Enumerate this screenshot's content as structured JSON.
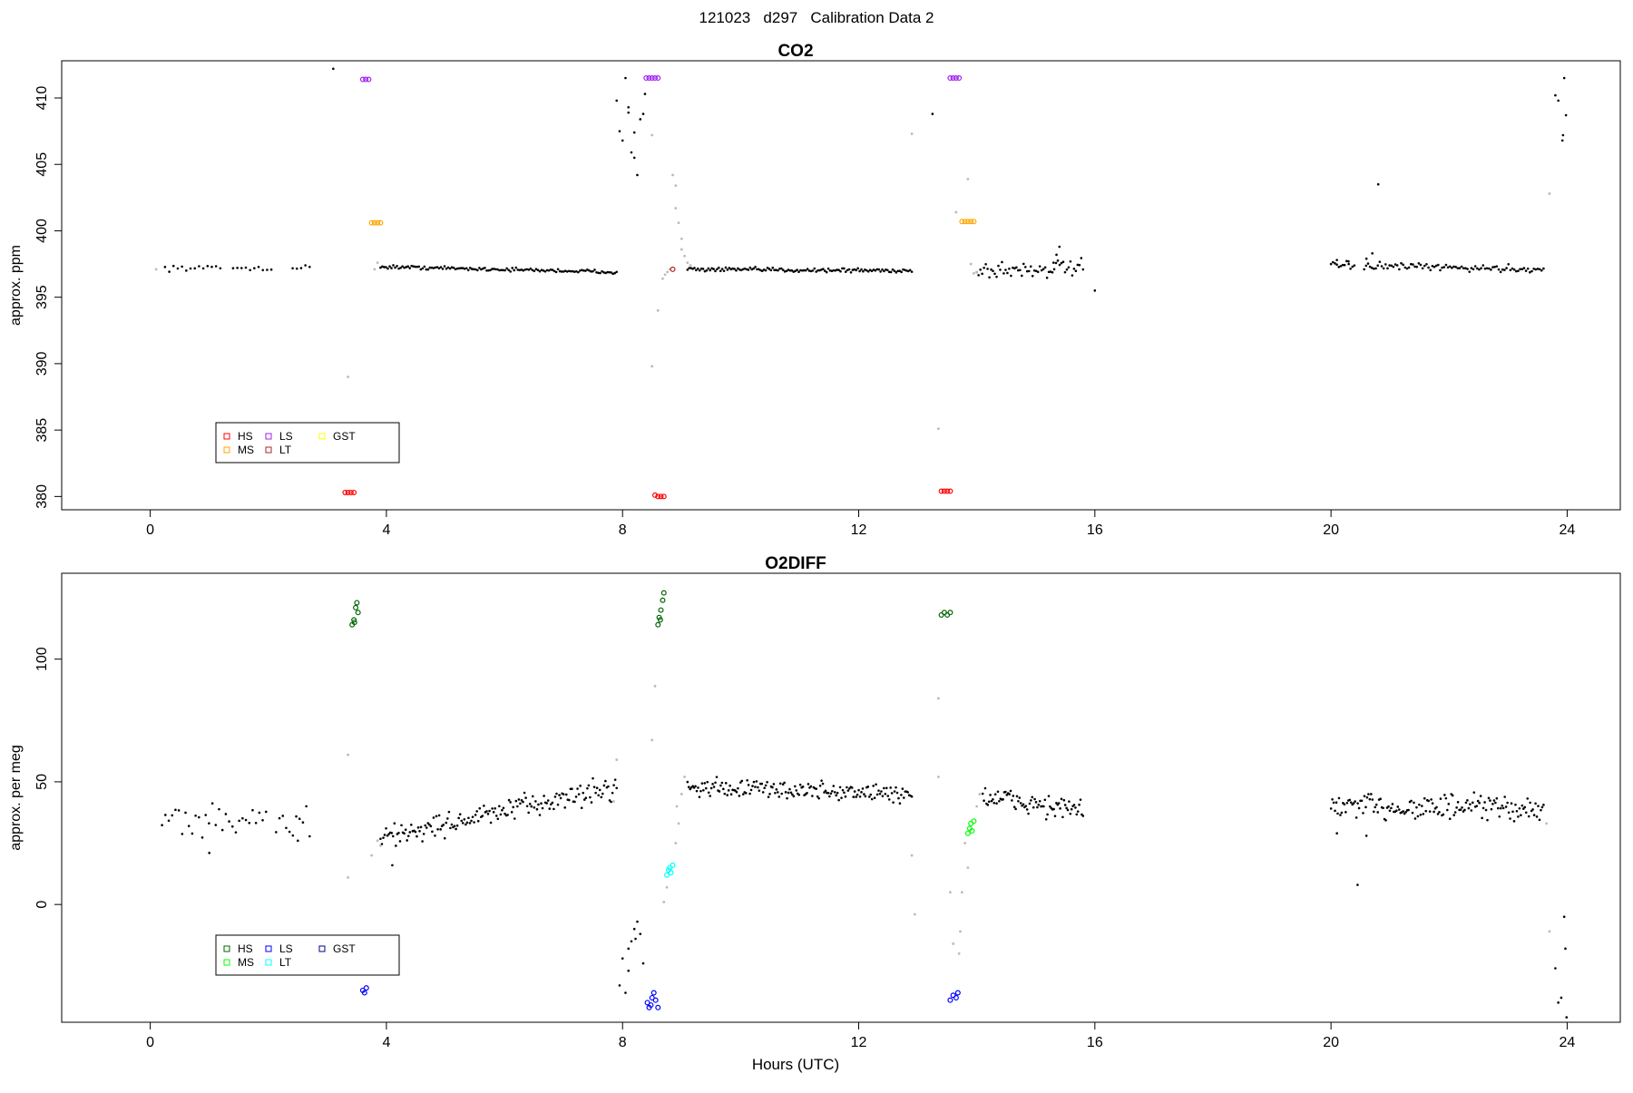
{
  "figure": {
    "title": "121023   d297   Calibration Data 2",
    "xlabel": "Hours (UTC)"
  },
  "chart_data": [
    {
      "type": "scatter",
      "title": "CO2",
      "xlabel": "",
      "ylabel": "approx. ppm",
      "xlim": [
        -1.5,
        24.9
      ],
      "ylim": [
        379,
        412.8
      ],
      "xticks": [
        0,
        4,
        8,
        12,
        16,
        20,
        24
      ],
      "yticks": [
        380,
        385,
        390,
        395,
        400,
        405,
        410
      ],
      "grid": false,
      "legend": {
        "placement": "bottom-left",
        "entries": [
          {
            "label": "HS",
            "color": "#ff0000"
          },
          {
            "label": "MS",
            "color": "#ffa500"
          },
          {
            "label": "LS",
            "color": "#a020f0"
          },
          {
            "label": "LT",
            "color": "#b22222"
          },
          {
            "label": "GST",
            "color": "#ffff00"
          }
        ]
      },
      "trace_segments": [
        {
          "x0": 0.25,
          "x1": 2.7,
          "y0": 397.2,
          "y1": 397.2,
          "n": 35,
          "noise": 0.15,
          "gaps": [
            [
              1.2,
              1.35
            ],
            [
              2.1,
              2.35
            ]
          ]
        },
        {
          "x0": 3.9,
          "x1": 7.9,
          "y0": 397.3,
          "y1": 396.9,
          "n": 130,
          "noise": 0.1,
          "gaps": []
        },
        {
          "x0": 9.1,
          "x1": 12.9,
          "y0": 397.1,
          "y1": 397.0,
          "n": 130,
          "noise": 0.12,
          "gaps": []
        },
        {
          "x0": 14.0,
          "x1": 15.8,
          "y0": 397.0,
          "y1": 397.2,
          "n": 60,
          "noise": 0.5,
          "gaps": []
        },
        {
          "x0": 20.0,
          "x1": 23.6,
          "y0": 397.4,
          "y1": 397.1,
          "n": 110,
          "noise": 0.2,
          "gaps": [
            [
              20.4,
              20.55
            ]
          ]
        }
      ],
      "black_points": [
        {
          "x": 3.1,
          "y": 412.2
        },
        {
          "x": 7.9,
          "y": 409.8
        },
        {
          "x": 7.95,
          "y": 407.5
        },
        {
          "x": 8.0,
          "y": 406.8
        },
        {
          "x": 8.05,
          "y": 411.5
        },
        {
          "x": 8.1,
          "y": 409.3
        },
        {
          "x": 8.15,
          "y": 405.9
        },
        {
          "x": 8.2,
          "y": 407.4
        },
        {
          "x": 8.25,
          "y": 404.2
        },
        {
          "x": 8.3,
          "y": 408.4
        },
        {
          "x": 8.35,
          "y": 408.8
        },
        {
          "x": 8.38,
          "y": 410.3
        },
        {
          "x": 8.1,
          "y": 408.9
        },
        {
          "x": 8.2,
          "y": 405.5
        },
        {
          "x": 13.25,
          "y": 408.8
        },
        {
          "x": 15.35,
          "y": 398.2
        },
        {
          "x": 15.4,
          "y": 398.8
        },
        {
          "x": 15.3,
          "y": 397.6
        },
        {
          "x": 16.0,
          "y": 395.5
        },
        {
          "x": 20.8,
          "y": 403.5
        },
        {
          "x": 20.1,
          "y": 397.8
        },
        {
          "x": 20.3,
          "y": 397.5
        },
        {
          "x": 20.7,
          "y": 398.3
        },
        {
          "x": 20.6,
          "y": 397.9
        },
        {
          "x": 23.8,
          "y": 410.2
        },
        {
          "x": 23.85,
          "y": 409.8
        },
        {
          "x": 23.92,
          "y": 406.8
        },
        {
          "x": 23.93,
          "y": 407.2
        },
        {
          "x": 23.95,
          "y": 411.5
        },
        {
          "x": 23.98,
          "y": 408.7
        }
      ],
      "gray_points": [
        {
          "x": 0.1,
          "y": 397.1
        },
        {
          "x": 3.35,
          "y": 389.0
        },
        {
          "x": 3.85,
          "y": 397.6
        },
        {
          "x": 3.8,
          "y": 397.1
        },
        {
          "x": 8.5,
          "y": 389.8
        },
        {
          "x": 8.5,
          "y": 407.2
        },
        {
          "x": 8.6,
          "y": 394.0
        },
        {
          "x": 8.85,
          "y": 404.2
        },
        {
          "x": 8.9,
          "y": 403.4
        },
        {
          "x": 8.9,
          "y": 401.7
        },
        {
          "x": 8.95,
          "y": 400.6
        },
        {
          "x": 9.0,
          "y": 399.4
        },
        {
          "x": 9.0,
          "y": 398.6
        },
        {
          "x": 9.05,
          "y": 398.1
        },
        {
          "x": 9.1,
          "y": 397.6
        },
        {
          "x": 9.15,
          "y": 397.4
        },
        {
          "x": 8.68,
          "y": 396.4
        },
        {
          "x": 8.72,
          "y": 396.7
        },
        {
          "x": 8.76,
          "y": 396.9
        },
        {
          "x": 8.8,
          "y": 397.1
        },
        {
          "x": 12.9,
          "y": 407.3
        },
        {
          "x": 13.35,
          "y": 385.1
        },
        {
          "x": 13.65,
          "y": 401.4
        },
        {
          "x": 13.85,
          "y": 403.9
        },
        {
          "x": 13.9,
          "y": 397.5
        },
        {
          "x": 13.95,
          "y": 396.8
        },
        {
          "x": 14.0,
          "y": 396.9
        },
        {
          "x": 23.7,
          "y": 402.8
        }
      ],
      "cal_points": [
        {
          "label": "HS",
          "color": "#ff0000",
          "x": [
            3.3,
            3.35,
            3.4,
            3.45,
            8.55,
            8.6,
            8.65,
            8.7,
            13.4,
            13.45,
            13.5,
            13.55
          ],
          "y": [
            380.3,
            380.3,
            380.3,
            380.3,
            380.1,
            380.0,
            380.0,
            380.0,
            380.4,
            380.4,
            380.4,
            380.4
          ]
        },
        {
          "label": "MS",
          "color": "#ffa500",
          "x": [
            3.75,
            3.8,
            3.85,
            3.9,
            13.75,
            13.8,
            13.85,
            13.9,
            13.95
          ],
          "y": [
            400.6,
            400.6,
            400.6,
            400.6,
            400.7,
            400.7,
            400.7,
            400.7,
            400.7
          ]
        },
        {
          "label": "LS",
          "color": "#a020f0",
          "x": [
            3.6,
            3.65,
            3.7,
            8.4,
            8.45,
            8.5,
            8.55,
            8.6,
            13.55,
            13.6,
            13.65,
            13.7
          ],
          "y": [
            411.4,
            411.4,
            411.4,
            411.5,
            411.5,
            411.5,
            411.5,
            411.5,
            411.5,
            411.5,
            411.5,
            411.5
          ]
        },
        {
          "label": "LT",
          "color": "#b22222",
          "x": [
            8.85
          ],
          "y": [
            397.1
          ]
        }
      ]
    },
    {
      "type": "scatter",
      "title": "O2DIFF",
      "xlabel": "Hours (UTC)",
      "ylabel": "approx. per meg",
      "xlim": [
        -1.5,
        24.9
      ],
      "ylim": [
        -48,
        135
      ],
      "xticks": [
        0,
        4,
        8,
        12,
        16,
        20,
        24
      ],
      "yticks": [
        0,
        50,
        100
      ],
      "grid": false,
      "legend": {
        "placement": "bottom-left",
        "entries": [
          {
            "label": "HS",
            "color": "#006400"
          },
          {
            "label": "MS",
            "color": "#00ff00"
          },
          {
            "label": "LS",
            "color": "#0000ff"
          },
          {
            "label": "LT",
            "color": "#00ffff"
          },
          {
            "label": "GST",
            "color": "#00008b"
          }
        ]
      },
      "trace_segments": [
        {
          "x0": 0.2,
          "x1": 2.7,
          "y0": 35,
          "y1": 33,
          "n": 45,
          "noise": 5,
          "gaps": [
            [
              2.0,
              2.1
            ]
          ]
        },
        {
          "x0": 3.9,
          "x1": 7.9,
          "y0": 27,
          "y1": 48,
          "n": 170,
          "noise": 3.5,
          "gaps": []
        },
        {
          "x0": 9.1,
          "x1": 12.9,
          "y0": 48,
          "y1": 45,
          "n": 170,
          "noise": 2.8,
          "gaps": []
        },
        {
          "x0": 14.1,
          "x1": 15.8,
          "y0": 44,
          "y1": 38,
          "n": 80,
          "noise": 3.5,
          "gaps": []
        },
        {
          "x0": 20.0,
          "x1": 23.6,
          "y0": 40,
          "y1": 39,
          "n": 160,
          "noise": 4,
          "gaps": []
        }
      ],
      "black_points": [
        {
          "x": 7.95,
          "y": -33
        },
        {
          "x": 8.0,
          "y": -22
        },
        {
          "x": 8.05,
          "y": -36
        },
        {
          "x": 8.1,
          "y": -27
        },
        {
          "x": 8.15,
          "y": -15
        },
        {
          "x": 8.2,
          "y": -10
        },
        {
          "x": 8.25,
          "y": -7
        },
        {
          "x": 8.3,
          "y": -12
        },
        {
          "x": 8.35,
          "y": -24
        },
        {
          "x": 8.1,
          "y": -18
        },
        {
          "x": 8.22,
          "y": -14
        },
        {
          "x": 4.1,
          "y": 16
        },
        {
          "x": 1.0,
          "y": 21
        },
        {
          "x": 2.5,
          "y": 26
        },
        {
          "x": 20.45,
          "y": 8
        },
        {
          "x": 20.6,
          "y": 28
        },
        {
          "x": 20.1,
          "y": 29
        },
        {
          "x": 23.8,
          "y": -26
        },
        {
          "x": 23.85,
          "y": -40
        },
        {
          "x": 23.9,
          "y": -38
        },
        {
          "x": 23.95,
          "y": -5
        },
        {
          "x": 23.97,
          "y": -18
        },
        {
          "x": 23.99,
          "y": -46
        }
      ],
      "gray_points": [
        {
          "x": 3.35,
          "y": 61
        },
        {
          "x": 3.35,
          "y": 11
        },
        {
          "x": 3.85,
          "y": 26
        },
        {
          "x": 3.9,
          "y": 24
        },
        {
          "x": 3.75,
          "y": 20
        },
        {
          "x": 7.9,
          "y": 59
        },
        {
          "x": 7.85,
          "y": 42
        },
        {
          "x": 8.55,
          "y": 89
        },
        {
          "x": 8.5,
          "y": 67
        },
        {
          "x": 8.7,
          "y": 1
        },
        {
          "x": 8.75,
          "y": 7
        },
        {
          "x": 8.9,
          "y": 25
        },
        {
          "x": 8.95,
          "y": 33
        },
        {
          "x": 9.0,
          "y": 45
        },
        {
          "x": 9.05,
          "y": 52
        },
        {
          "x": 8.92,
          "y": 40
        },
        {
          "x": 12.9,
          "y": 20
        },
        {
          "x": 12.95,
          "y": -4
        },
        {
          "x": 13.35,
          "y": 84
        },
        {
          "x": 13.35,
          "y": 52
        },
        {
          "x": 13.55,
          "y": 5
        },
        {
          "x": 13.6,
          "y": -16
        },
        {
          "x": 13.7,
          "y": -20
        },
        {
          "x": 13.75,
          "y": 5
        },
        {
          "x": 13.72,
          "y": -11
        },
        {
          "x": 13.85,
          "y": 15
        },
        {
          "x": 13.8,
          "y": 25
        },
        {
          "x": 14.0,
          "y": 40
        },
        {
          "x": 14.05,
          "y": 45
        },
        {
          "x": 23.7,
          "y": -11
        },
        {
          "x": 23.65,
          "y": 33
        }
      ],
      "cal_points": [
        {
          "label": "HS",
          "color": "#006400",
          "x": [
            3.42,
            3.45,
            3.48,
            3.5,
            3.52,
            3.46,
            8.6,
            8.62,
            8.65,
            8.68,
            8.7,
            8.64,
            13.4,
            13.45,
            13.5,
            13.55
          ],
          "y": [
            114,
            116,
            121,
            123,
            119,
            115,
            114,
            117,
            120,
            124,
            127,
            116,
            118,
            119,
            118,
            119
          ]
        },
        {
          "label": "MS",
          "color": "#00ff00",
          "x": [
            13.85,
            13.88,
            13.9,
            13.92,
            13.95
          ],
          "y": [
            29,
            31,
            33,
            30,
            34
          ]
        },
        {
          "label": "LS",
          "color": "#0000ff",
          "x": [
            3.6,
            3.63,
            3.66,
            8.42,
            8.45,
            8.48,
            8.5,
            8.53,
            8.56,
            8.6,
            13.55,
            13.6,
            13.65,
            13.68
          ],
          "y": [
            -35,
            -36,
            -34,
            -40,
            -42,
            -41,
            -38,
            -36,
            -39,
            -42,
            -39,
            -37,
            -38,
            -36
          ]
        },
        {
          "label": "LT",
          "color": "#00ffff",
          "x": [
            8.75,
            8.78,
            8.8,
            8.82,
            8.85
          ],
          "y": [
            12,
            14,
            15,
            13,
            16
          ]
        }
      ]
    }
  ]
}
